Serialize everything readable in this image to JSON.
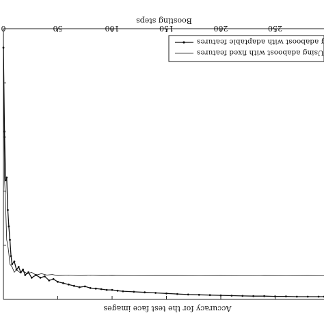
{
  "chart_data": {
    "type": "line",
    "orientation_note": "image rendered rotated 180 degrees",
    "title": "",
    "xlabel": "Boosting steps",
    "ylabel": "",
    "caption_text": "Accuracy for the test face images",
    "xlim": [
      0,
      300
    ],
    "x_ticks": [
      0,
      50,
      100,
      150,
      200,
      250
    ],
    "ylim": [
      0,
      1
    ],
    "legend": {
      "placement": "top-right"
    },
    "series": [
      {
        "name": "Using adaboost with adaptable features",
        "marker": "dot",
        "color": "#111111",
        "x": [
          0,
          1,
          2,
          3,
          4,
          5,
          6,
          7,
          8,
          10,
          12,
          14,
          16,
          18,
          20,
          23,
          26,
          30,
          34,
          38,
          42,
          46,
          50,
          55,
          60,
          65,
          70,
          75,
          80,
          85,
          90,
          95,
          100,
          105,
          110,
          120,
          130,
          140,
          150,
          160,
          170,
          180,
          190,
          200,
          210,
          220,
          230,
          240,
          250,
          260,
          270,
          280,
          290,
          295
        ],
        "y": [
          0.93,
          0.62,
          0.44,
          0.45,
          0.33,
          0.27,
          0.22,
          0.16,
          0.13,
          0.14,
          0.11,
          0.12,
          0.1,
          0.11,
          0.09,
          0.1,
          0.08,
          0.09,
          0.08,
          0.085,
          0.07,
          0.075,
          0.065,
          0.06,
          0.055,
          0.05,
          0.045,
          0.048,
          0.042,
          0.04,
          0.038,
          0.035,
          0.035,
          0.032,
          0.03,
          0.028,
          0.026,
          0.024,
          0.022,
          0.02,
          0.018,
          0.017,
          0.016,
          0.015,
          0.014,
          0.013,
          0.012,
          0.012,
          0.011,
          0.011,
          0.01,
          0.01,
          0.01,
          0.01
        ]
      },
      {
        "name": "Using adaboost with fixed features",
        "marker": "none",
        "color": "#111111",
        "x": [
          0,
          1,
          2,
          3,
          4,
          5,
          6,
          8,
          10,
          12,
          15,
          18,
          22,
          26,
          30,
          35,
          40,
          45,
          50,
          60,
          70,
          80,
          90,
          100,
          120,
          140,
          160,
          180,
          200,
          220,
          240,
          260,
          280,
          295
        ],
        "y": [
          0.98,
          0.45,
          0.35,
          0.22,
          0.2,
          0.17,
          0.13,
          0.12,
          0.1,
          0.11,
          0.1,
          0.105,
          0.095,
          0.1,
          0.09,
          0.095,
          0.09,
          0.092,
          0.088,
          0.09,
          0.087,
          0.09,
          0.088,
          0.089,
          0.087,
          0.088,
          0.088,
          0.087,
          0.088,
          0.087,
          0.088,
          0.087,
          0.088,
          0.087
        ]
      }
    ]
  }
}
